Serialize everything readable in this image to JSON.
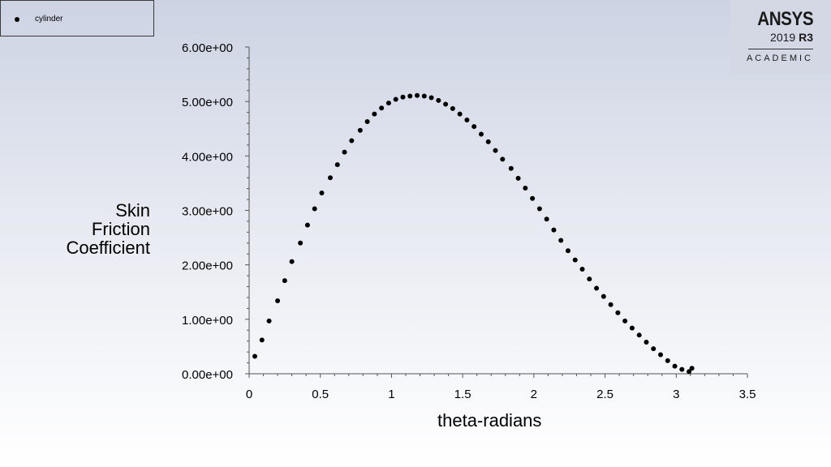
{
  "legend": {
    "series_label": "cylinder"
  },
  "logo": {
    "brand": "ANSYS",
    "version_year": "2019",
    "version_release": "R3",
    "edition": "ACADEMIC"
  },
  "chart_data": {
    "type": "scatter",
    "xlabel": "theta-radians",
    "ylabel_lines": [
      "Skin",
      "Friction",
      "Coefficient"
    ],
    "xlim": [
      0,
      3.5
    ],
    "ylim": [
      0,
      6
    ],
    "xticks": [
      "0",
      "0.5",
      "1",
      "1.5",
      "2",
      "2.5",
      "3",
      "3.5"
    ],
    "xtick_values": [
      0,
      0.5,
      1,
      1.5,
      2,
      2.5,
      3,
      3.5
    ],
    "yticks": [
      "0.00e+00",
      "1.00e+00",
      "2.00e+00",
      "3.00e+00",
      "4.00e+00",
      "5.00e+00",
      "6.00e+00"
    ],
    "ytick_values": [
      0,
      1,
      2,
      3,
      4,
      5,
      6
    ],
    "marker_color": "#000000",
    "series": [
      {
        "name": "cylinder",
        "x": [
          0.04,
          0.09,
          0.14,
          0.2,
          0.25,
          0.3,
          0.36,
          0.41,
          0.46,
          0.51,
          0.57,
          0.62,
          0.67,
          0.72,
          0.78,
          0.83,
          0.88,
          0.93,
          0.98,
          1.03,
          1.08,
          1.13,
          1.18,
          1.23,
          1.28,
          1.33,
          1.38,
          1.43,
          1.48,
          1.53,
          1.58,
          1.63,
          1.68,
          1.73,
          1.78,
          1.84,
          1.89,
          1.94,
          1.99,
          2.04,
          2.09,
          2.14,
          2.19,
          2.24,
          2.29,
          2.34,
          2.39,
          2.44,
          2.49,
          2.54,
          2.59,
          2.64,
          2.69,
          2.74,
          2.79,
          2.84,
          2.89,
          2.94,
          2.99,
          3.04,
          3.09,
          3.11
        ],
        "y": [
          0.32,
          0.62,
          0.97,
          1.34,
          1.71,
          2.06,
          2.4,
          2.73,
          3.03,
          3.32,
          3.6,
          3.84,
          4.07,
          4.28,
          4.47,
          4.63,
          4.77,
          4.88,
          4.97,
          5.04,
          5.08,
          5.1,
          5.11,
          5.1,
          5.07,
          5.02,
          4.95,
          4.87,
          4.77,
          4.66,
          4.54,
          4.4,
          4.26,
          4.1,
          3.94,
          3.77,
          3.59,
          3.41,
          3.22,
          3.03,
          2.84,
          2.64,
          2.45,
          2.26,
          2.09,
          1.92,
          1.74,
          1.57,
          1.42,
          1.27,
          1.12,
          0.97,
          0.84,
          0.71,
          0.58,
          0.46,
          0.35,
          0.24,
          0.14,
          0.08,
          0.04,
          0.1
        ]
      }
    ]
  }
}
